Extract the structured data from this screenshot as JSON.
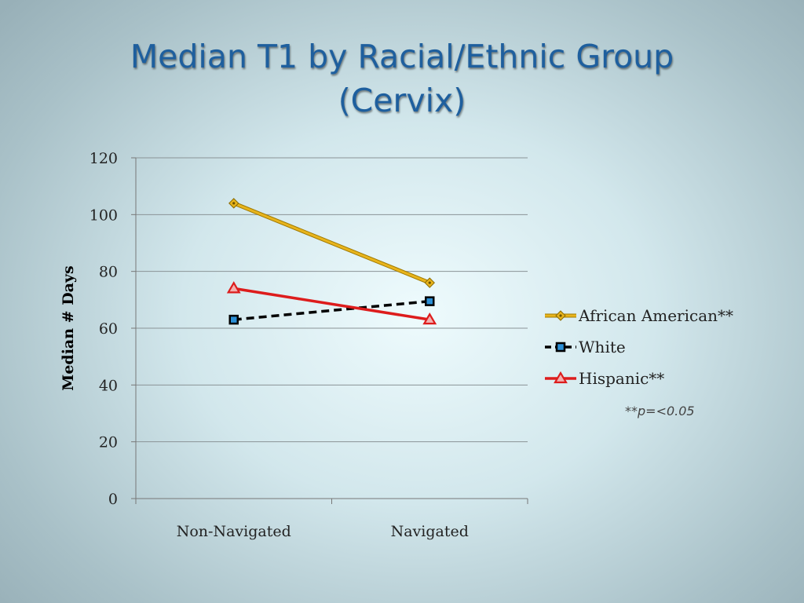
{
  "slide": {
    "title_line1": "Median T1 by Racial/Ethnic Group",
    "title_line2": "(Cervix)"
  },
  "chart_data": {
    "type": "line",
    "title": "",
    "xlabel": "",
    "ylabel": "Median # Days",
    "categories": [
      "Non-Navigated",
      "Navigated"
    ],
    "ylim": [
      0,
      120
    ],
    "yticks": [
      0,
      20,
      40,
      60,
      80,
      100,
      120
    ],
    "grid": true,
    "legend_position": "right",
    "series": [
      {
        "name": "African American**",
        "values": [
          104,
          76
        ],
        "color": "#e8b41c",
        "marker": "diamond",
        "dash": false
      },
      {
        "name": "White",
        "values": [
          63,
          69.5
        ],
        "color": "#000000",
        "marker_color": "#2b8fd6",
        "marker": "square",
        "dash": true
      },
      {
        "name": "Hispanic**",
        "values": [
          74,
          63
        ],
        "color": "#dd1c1c",
        "marker": "triangle",
        "dash": false
      }
    ],
    "annotation": "**p=<0.05"
  }
}
